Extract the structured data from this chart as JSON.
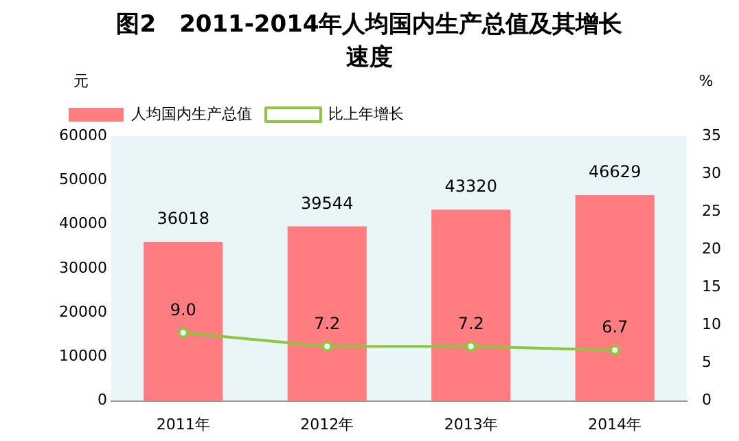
{
  "chart_data": {
    "type": "bar",
    "title": "图2　2011-2014年人均国内生产总值及其增长速度",
    "ylabel": "元",
    "y2label": "%",
    "categories": [
      "2011年",
      "2012年",
      "2013年",
      "2014年"
    ],
    "series": [
      {
        "name": "人均国内生产总值",
        "color": "#ff7c80",
        "values": [
          36018,
          39544,
          43320,
          46629
        ],
        "value_labels": [
          "36018",
          "39544",
          "43320",
          "46629"
        ]
      },
      {
        "name": "比上年增长",
        "type": "line",
        "axis": "y2",
        "color": "#8dc63f",
        "values": [
          9.0,
          7.2,
          7.2,
          6.7
        ],
        "value_labels": [
          "9.0",
          "7.2",
          "7.2",
          "6.7"
        ]
      }
    ],
    "ylim": [
      0,
      60000
    ],
    "yticks": [
      0,
      10000,
      20000,
      30000,
      40000,
      50000,
      60000
    ],
    "y2lim": [
      0,
      35
    ],
    "y2ticks": [
      0,
      5,
      10,
      15,
      20,
      25,
      30,
      35
    ],
    "grid": false,
    "legend": "top left",
    "marker": "circle",
    "line_style": "solid"
  }
}
